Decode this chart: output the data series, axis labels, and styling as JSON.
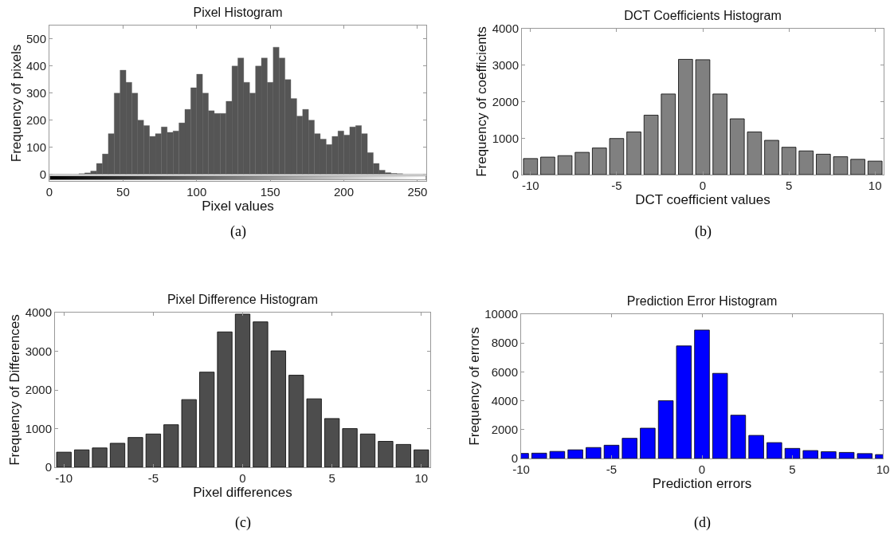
{
  "chart_data": [
    {
      "type": "histogram",
      "title": "Pixel Histogram",
      "xlabel": "Pixel values",
      "ylabel": "Frequency of pixels",
      "color": "#555555",
      "bins": [
        0,
        4,
        8,
        12,
        16,
        20,
        24,
        28,
        32,
        36,
        40,
        44,
        48,
        52,
        56,
        60,
        64,
        68,
        72,
        76,
        80,
        84,
        88,
        92,
        96,
        100,
        104,
        108,
        112,
        116,
        120,
        124,
        128,
        132,
        136,
        140,
        144,
        148,
        152,
        156,
        160,
        164,
        168,
        172,
        176,
        180,
        184,
        188,
        192,
        196,
        200,
        204,
        208,
        212,
        216,
        220,
        224,
        228,
        232,
        236,
        240,
        244,
        248,
        252,
        256
      ],
      "values": [
        0,
        0,
        0,
        0,
        0,
        2,
        5,
        12,
        40,
        75,
        150,
        300,
        385,
        340,
        300,
        200,
        180,
        140,
        150,
        175,
        155,
        160,
        190,
        240,
        320,
        370,
        300,
        235,
        225,
        225,
        270,
        400,
        430,
        340,
        300,
        400,
        430,
        340,
        470,
        430,
        350,
        280,
        215,
        240,
        200,
        150,
        130,
        110,
        140,
        160,
        145,
        175,
        180,
        150,
        80,
        40,
        15,
        6,
        3,
        2,
        0,
        0,
        0,
        0
      ],
      "xlim": [
        0,
        256
      ],
      "ylim": [
        -25,
        550
      ],
      "xticks": [
        0,
        50,
        100,
        150,
        200,
        250
      ],
      "yticks": [
        0,
        100,
        200,
        300,
        400,
        500
      ],
      "grid": false,
      "annotations": [
        "(a)"
      ]
    },
    {
      "type": "histogram",
      "title": "DCT Coefficients Histogram",
      "xlabel": "DCT coefficient values",
      "ylabel": "Frequency of coefficients",
      "color": "#808080",
      "bins": [
        -10.5,
        -9.5,
        -8.5,
        -7.5,
        -6.5,
        -5.5,
        -4.5,
        -3.5,
        -2.5,
        -1.5,
        -0.5,
        0.5,
        1.5,
        2.5,
        3.5,
        4.5,
        5.5,
        6.5,
        7.5,
        8.5,
        9.5,
        10.5
      ],
      "values": [
        440,
        480,
        520,
        610,
        730,
        990,
        1170,
        1630,
        2210,
        3160,
        3150,
        2210,
        1530,
        1170,
        940,
        750,
        650,
        560,
        490,
        420,
        370
      ],
      "xlim": [
        -10.5,
        10.5
      ],
      "ylim": [
        0,
        4000
      ],
      "xticks": [
        -10,
        -5,
        0,
        5,
        10
      ],
      "yticks": [
        0,
        1000,
        2000,
        3000,
        4000
      ],
      "grid": false,
      "annotations": [
        "(b)"
      ]
    },
    {
      "type": "histogram",
      "title": "Pixel Difference Histogram",
      "xlabel": "Pixel differences",
      "ylabel": "Frequency of Differences",
      "color": "#4d4d4d",
      "bins": [
        -10.5,
        -9.5,
        -8.5,
        -7.5,
        -6.5,
        -5.5,
        -4.5,
        -3.5,
        -2.5,
        -1.5,
        -0.5,
        0.5,
        1.5,
        2.5,
        3.5,
        4.5,
        5.5,
        6.5,
        7.5,
        8.5,
        9.5,
        10.5
      ],
      "values": [
        390,
        450,
        500,
        620,
        770,
        860,
        1100,
        1750,
        2460,
        3500,
        3960,
        3760,
        3010,
        2380,
        1770,
        1260,
        1000,
        860,
        670,
        590,
        450
      ],
      "xlim": [
        -10.5,
        10.5
      ],
      "ylim": [
        0,
        4000
      ],
      "xticks": [
        -10,
        -5,
        0,
        5,
        10
      ],
      "yticks": [
        0,
        1000,
        2000,
        3000,
        4000
      ],
      "grid": false,
      "annotations": [
        "(c)"
      ]
    },
    {
      "type": "histogram",
      "title": "Prediction Error Histogram",
      "xlabel": "Prediction errors",
      "ylabel": "Frequency of errors",
      "color": "#0000ff",
      "bins": [
        -10.5,
        -9.5,
        -8.5,
        -7.5,
        -6.5,
        -5.5,
        -4.5,
        -3.5,
        -2.5,
        -1.5,
        -0.5,
        0.5,
        1.5,
        2.5,
        3.5,
        4.5,
        5.5,
        6.5,
        7.5,
        8.5,
        9.5,
        10.5
      ],
      "values": [
        350,
        370,
        490,
        600,
        760,
        920,
        1400,
        2100,
        4000,
        7800,
        8900,
        5900,
        3000,
        1600,
        1100,
        700,
        550,
        470,
        420,
        340,
        270
      ],
      "xlim": [
        -10,
        10
      ],
      "ylim": [
        0,
        10000
      ],
      "xticks": [
        -10,
        -5,
        0,
        5,
        10
      ],
      "yticks": [
        0,
        2000,
        4000,
        6000,
        8000,
        10000
      ],
      "grid": false,
      "annotations": [
        "(d)"
      ]
    }
  ]
}
